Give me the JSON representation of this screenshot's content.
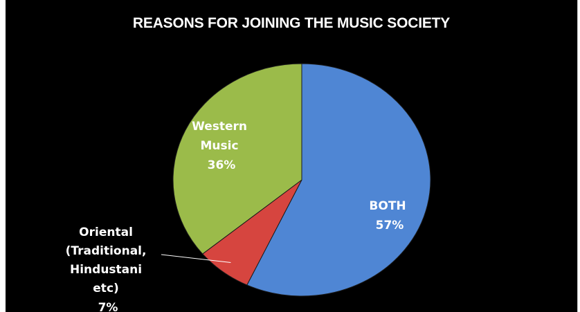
{
  "chart_data": {
    "type": "pie",
    "title": "REASONS FOR JOINING THE MUSIC SOCIETY",
    "slices": [
      {
        "label": "BOTH",
        "value": 57,
        "value_label": "57%",
        "color": "#4f86d4"
      },
      {
        "label": "Oriental (Traditional, Hindustani etc)",
        "value": 7,
        "value_label": "7%",
        "color": "#d6453f"
      },
      {
        "label": "Western Music",
        "value": 36,
        "value_label": "36%",
        "color": "#9bbb4a"
      }
    ],
    "start_angle": "12 o'clock",
    "direction": "clockwise",
    "legend": "none",
    "background": "#000000"
  }
}
